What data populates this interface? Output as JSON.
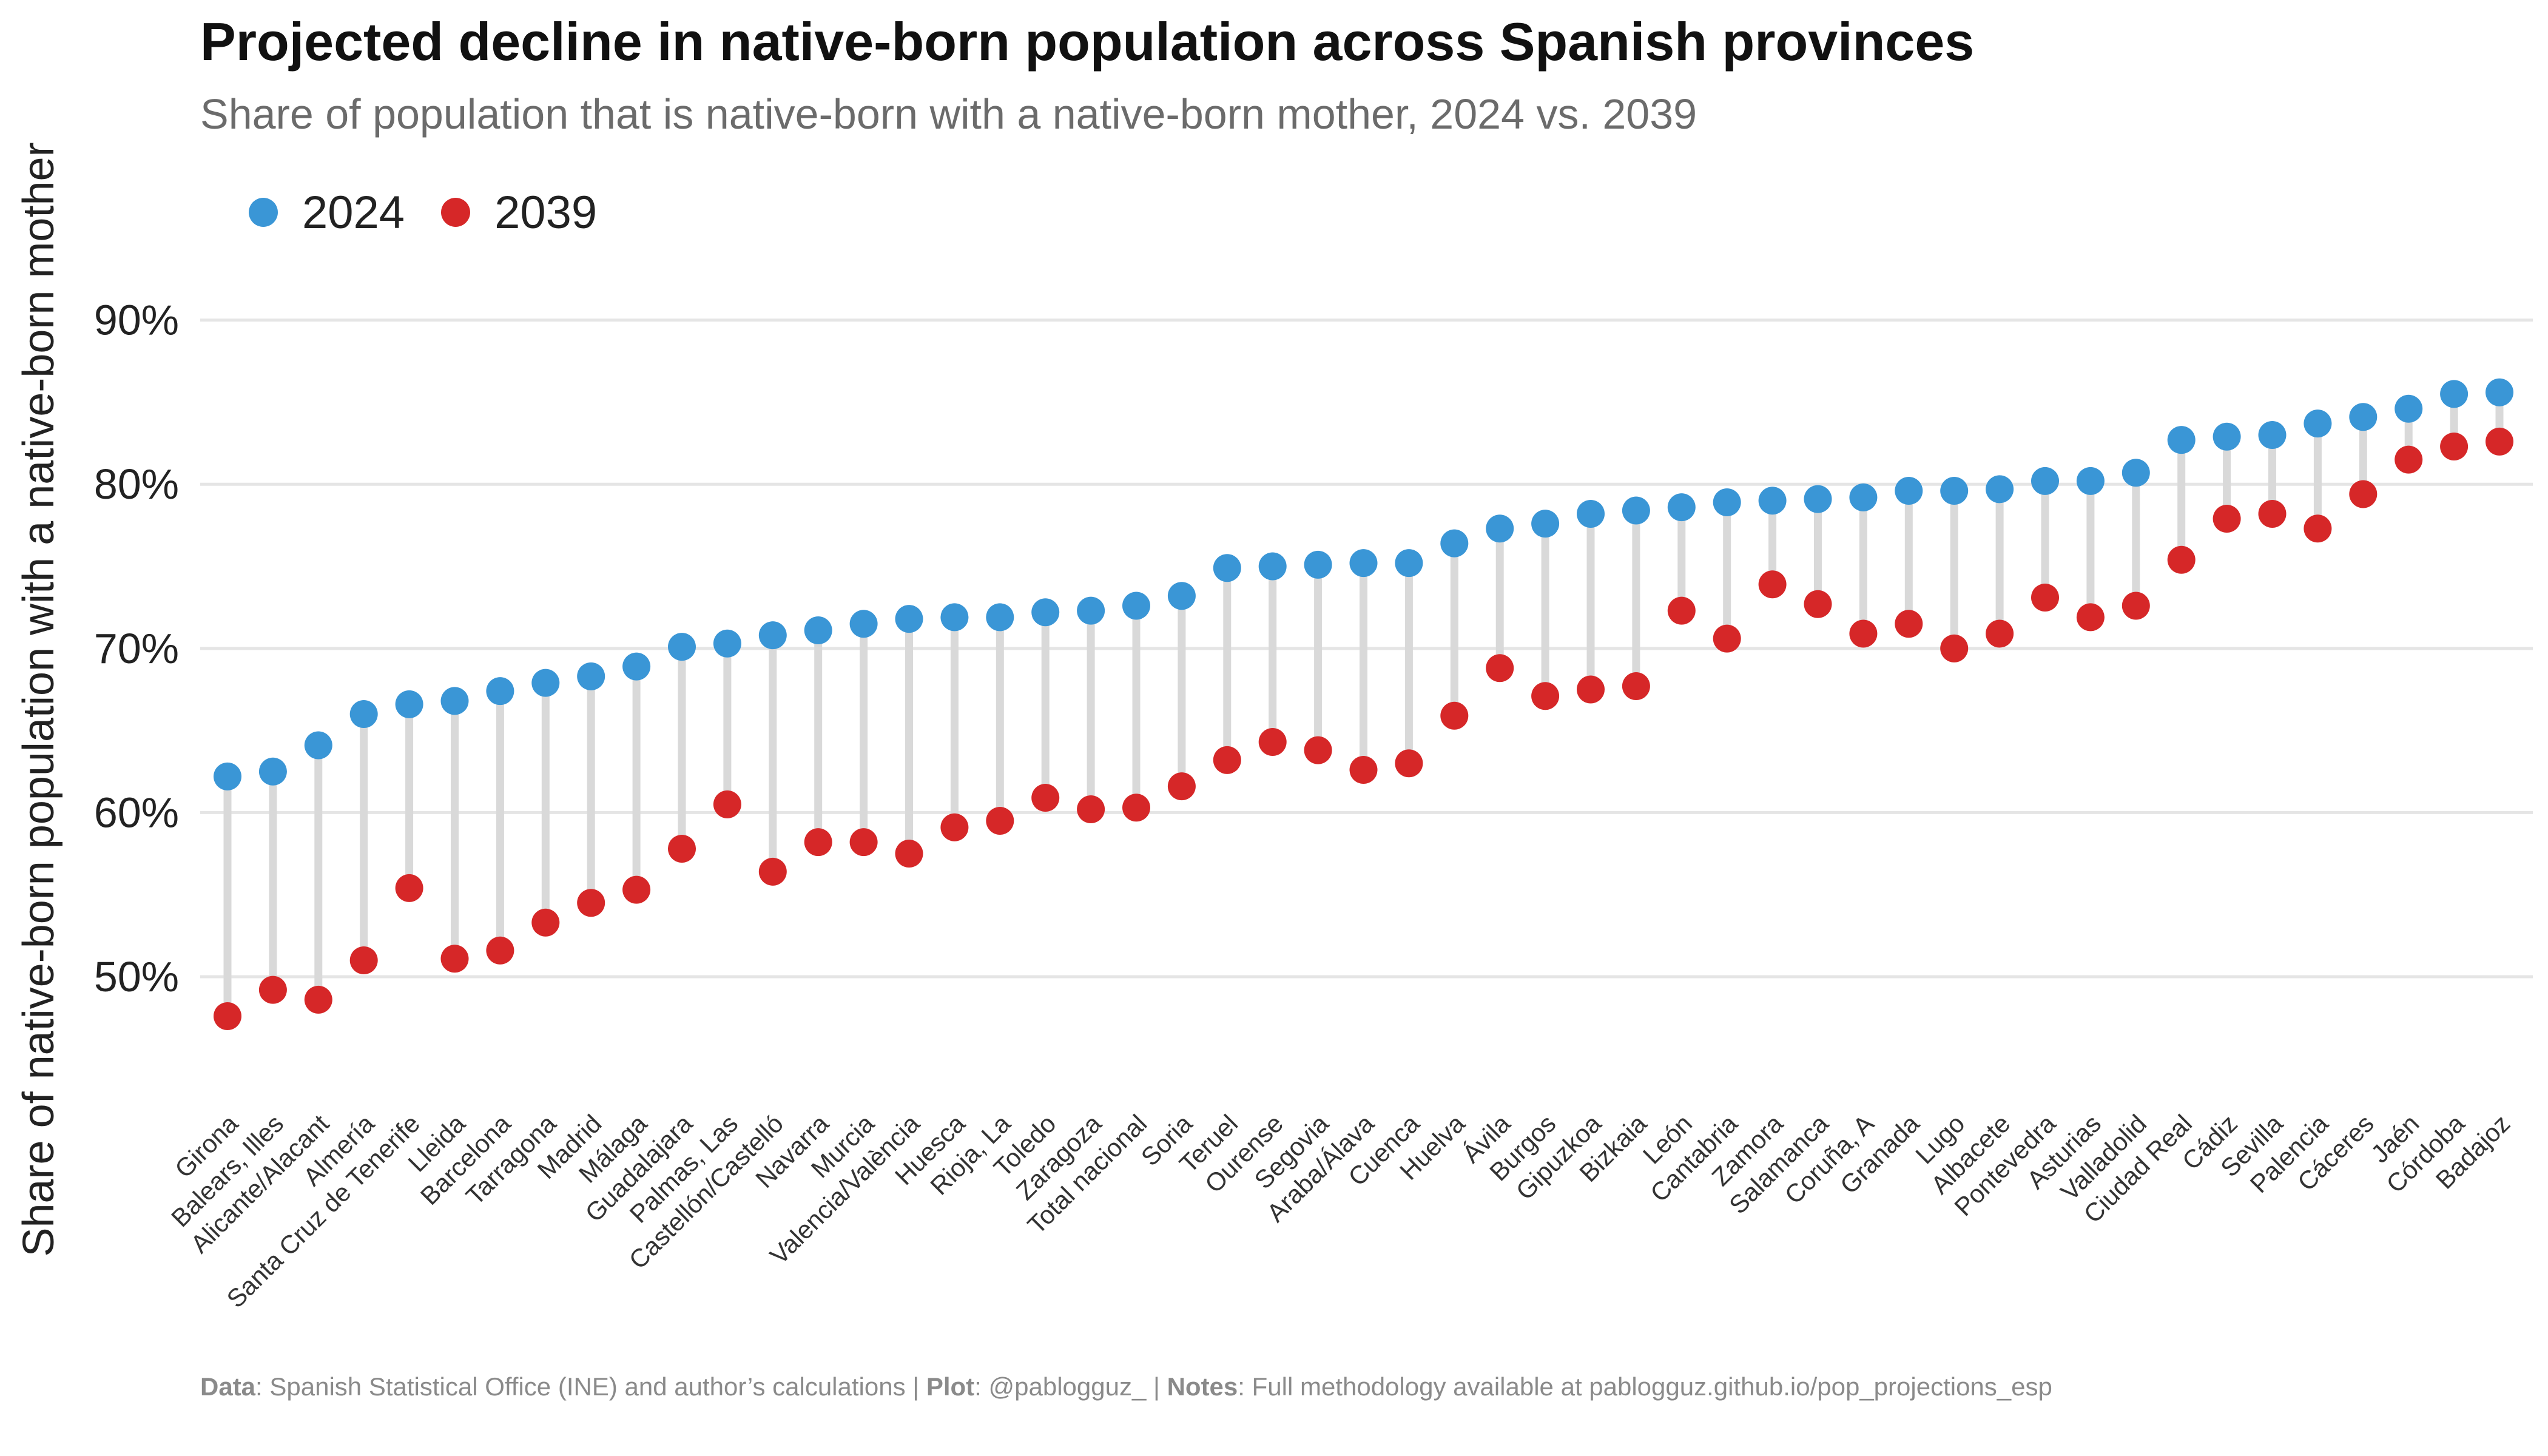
{
  "title": "Projected decline in native-born population across Spanish provinces",
  "subtitle": "Share of population that is native-born with a native-born mother, 2024 vs. 2039",
  "caption": {
    "data_label": "Data",
    "data_text": ": Spanish Statistical Office (INE) and author’s calculations | ",
    "plot_label": "Plot",
    "plot_text": ": @pablogguz_ | ",
    "notes_label": "Notes",
    "notes_text": ": Full methodology available at pablogguz.github.io/pop_projections_esp"
  },
  "colors": {
    "s2024": "#3a96d6",
    "s2039": "#d62728",
    "segment": "#d9d9d9",
    "grid": "#e5e5e5"
  },
  "chart_data": {
    "type": "scatter",
    "ylabel": "Share of native-born population with a native-born mother",
    "ylim": [
      41.5,
      92.5
    ],
    "yticks": [
      50,
      60,
      70,
      80,
      90
    ],
    "ytick_labels": [
      "50%",
      "60%",
      "70%",
      "80%",
      "90%"
    ],
    "grid": true,
    "legend_position": "top-left",
    "categories": [
      "Girona",
      "Balears, Illes",
      "Alicante/Alacant",
      "Almería",
      "Santa Cruz de Tenerife",
      "Lleida",
      "Barcelona",
      "Tarragona",
      "Madrid",
      "Málaga",
      "Guadalajara",
      "Palmas, Las",
      "Castellón/Castelló",
      "Navarra",
      "Murcia",
      "Valencia/València",
      "Huesca",
      "Rioja, La",
      "Toledo",
      "Zaragoza",
      "Total nacional",
      "Soria",
      "Teruel",
      "Ourense",
      "Segovia",
      "Araba/Álava",
      "Cuenca",
      "Huelva",
      "Ávila",
      "Burgos",
      "Gipuzkoa",
      "Bizkaia",
      "León",
      "Cantabria",
      "Zamora",
      "Salamanca",
      "Coruña, A",
      "Granada",
      "Lugo",
      "Albacete",
      "Pontevedra",
      "Asturias",
      "Valladolid",
      "Ciudad Real",
      "Cádiz",
      "Sevilla",
      "Palencia",
      "Cáceres",
      "Jaén",
      "Córdoba",
      "Badajoz"
    ],
    "series": [
      {
        "name": "2024",
        "values": [
          62.2,
          62.5,
          64.1,
          66.0,
          66.6,
          66.8,
          67.4,
          67.9,
          68.3,
          68.9,
          70.1,
          70.3,
          70.8,
          71.1,
          71.5,
          71.8,
          71.9,
          71.9,
          72.2,
          72.3,
          72.6,
          73.2,
          74.9,
          75.0,
          75.1,
          75.2,
          75.2,
          76.4,
          77.3,
          77.6,
          78.2,
          78.4,
          78.6,
          78.9,
          79.0,
          79.1,
          79.2,
          79.6,
          79.6,
          79.7,
          80.2,
          80.2,
          80.7,
          82.7,
          82.9,
          83.0,
          83.7,
          84.1,
          84.6,
          85.5,
          85.6
        ]
      },
      {
        "name": "2039",
        "values": [
          47.6,
          49.2,
          48.6,
          51.0,
          55.4,
          51.1,
          51.6,
          53.3,
          54.5,
          55.3,
          57.8,
          60.5,
          56.4,
          58.2,
          58.2,
          57.5,
          59.1,
          59.5,
          60.9,
          60.2,
          60.3,
          61.6,
          63.2,
          64.3,
          63.8,
          62.6,
          63.0,
          65.9,
          68.8,
          67.1,
          67.5,
          67.7,
          72.3,
          70.6,
          73.9,
          72.7,
          70.9,
          71.5,
          70.0,
          70.9,
          73.1,
          71.9,
          72.6,
          75.4,
          77.9,
          78.2,
          77.3,
          79.4,
          81.5,
          82.3,
          82.6
        ]
      }
    ]
  }
}
